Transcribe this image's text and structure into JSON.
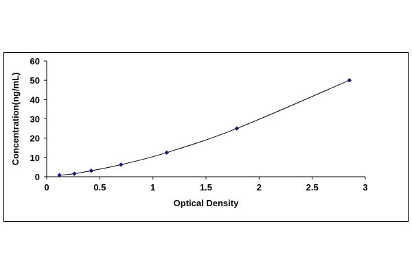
{
  "chart_data": {
    "type": "scatter",
    "title": "",
    "xlabel": "Optical Density",
    "ylabel": "Concentration(ng/mL)",
    "xlim": [
      0,
      3
    ],
    "ylim": [
      0,
      60
    ],
    "x_ticks": [
      "0",
      "0.5",
      "1",
      "1.5",
      "2",
      "2.5",
      "3"
    ],
    "y_ticks": [
      "0",
      "10",
      "20",
      "30",
      "40",
      "50",
      "60"
    ],
    "grid": false,
    "legend": "none",
    "trendline": "smooth curve through points",
    "series": [
      {
        "x": [
          0.12,
          0.26,
          0.42,
          0.7,
          1.13,
          1.79,
          2.85
        ],
        "y": [
          0.78,
          1.56,
          3.12,
          6.25,
          12.5,
          25,
          50
        ],
        "marker_color": "#1a1a6e",
        "line_color": "#000000"
      }
    ]
  }
}
